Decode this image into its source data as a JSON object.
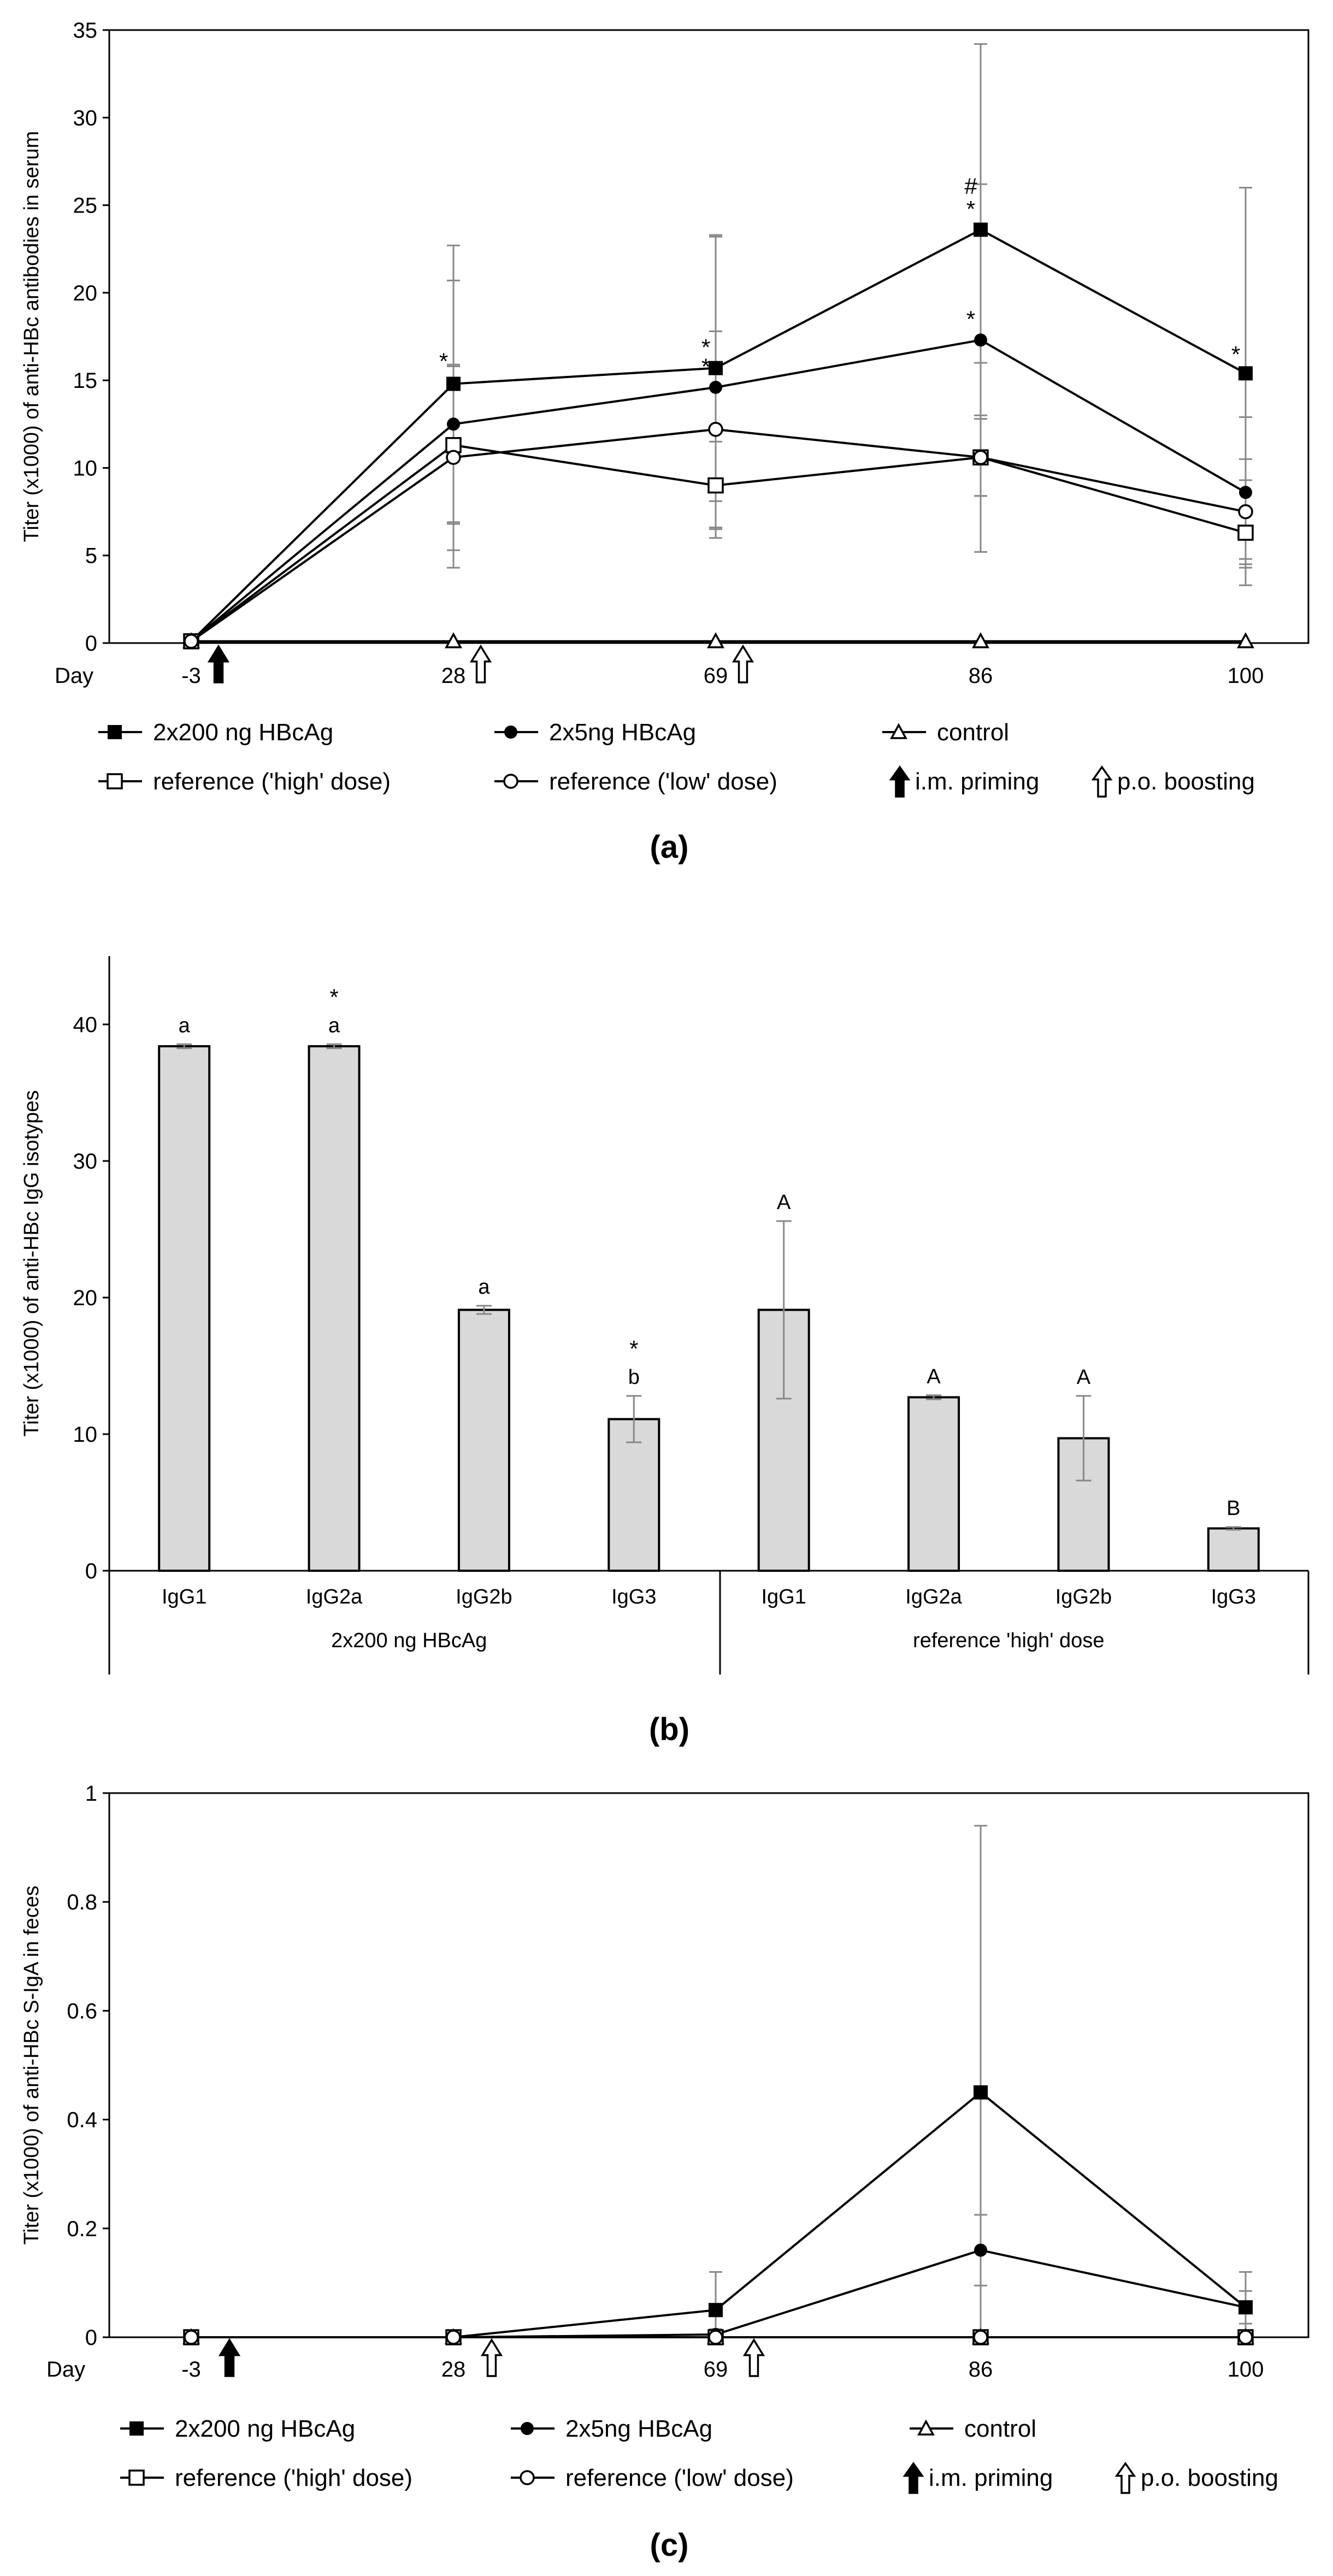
{
  "colors": {
    "bar_fill": "#d9d9d9",
    "axis": "#000000",
    "error_bar": "#888888",
    "background": "#ffffff"
  },
  "chart_data": [
    {
      "id": "a",
      "type": "line",
      "caption": "(a)",
      "ylabel": "Titer (x1000) of anti-HBc antibodies in serum",
      "xlabel_prefix": "Day",
      "categories": [
        "-3",
        "28",
        "69",
        "86",
        "100"
      ],
      "ylim": [
        0,
        35
      ],
      "yticks": [
        0,
        5,
        10,
        15,
        20,
        25,
        30,
        35
      ],
      "series": [
        {
          "name": "2x200 ng HBcAg",
          "marker": "filled-square",
          "values": [
            0.1,
            14.8,
            15.7,
            23.6,
            15.4
          ],
          "errors": [
            0,
            7.9,
            7.6,
            10.6,
            10.6
          ]
        },
        {
          "name": "2x5ng HBcAg",
          "marker": "filled-circle",
          "values": [
            0.1,
            12.5,
            14.6,
            17.3,
            8.6
          ],
          "errors": [
            0,
            8.2,
            8.6,
            8.9,
            4.3
          ]
        },
        {
          "name": "control",
          "marker": "open-triangle",
          "values": [
            0.1,
            0.1,
            0.1,
            0.1,
            0.1
          ],
          "errors": [
            0,
            0,
            0,
            0,
            0
          ]
        },
        {
          "name": "reference ('high' dose)",
          "marker": "open-square",
          "values": [
            0.1,
            11.3,
            9.0,
            10.6,
            6.3
          ],
          "errors": [
            0,
            4.5,
            2.5,
            2.2,
            3.0
          ]
        },
        {
          "name": "reference ('low' dose)",
          "marker": "open-circle",
          "values": [
            0.1,
            10.6,
            12.2,
            10.6,
            7.5
          ],
          "errors": [
            0,
            5.3,
            5.6,
            5.4,
            3.0
          ]
        }
      ],
      "annotations": [
        {
          "category": "28",
          "value": 16.2,
          "text": "*"
        },
        {
          "category": "69",
          "value": 17.0,
          "text": "*"
        },
        {
          "category": "69",
          "value": 15.9,
          "text": "*"
        },
        {
          "category": "86",
          "value": 24.9,
          "text": "*"
        },
        {
          "category": "86",
          "value": 26.2,
          "text": "#"
        },
        {
          "category": "86",
          "value": 18.6,
          "text": "*"
        },
        {
          "category": "100",
          "value": 16.6,
          "text": "*"
        }
      ],
      "event_arrows": [
        {
          "after_category": "-3",
          "kind": "i.m. priming"
        },
        {
          "after_category": "28",
          "kind": "p.o. boosting"
        },
        {
          "after_category": "69",
          "kind": "p.o. boosting"
        }
      ],
      "legend": [
        {
          "label": "2x200 ng HBcAg",
          "marker": "filled-square"
        },
        {
          "label": "2x5ng HBcAg",
          "marker": "filled-circle"
        },
        {
          "label": "control",
          "marker": "open-triangle"
        },
        {
          "label": "reference ('high' dose)",
          "marker": "open-square"
        },
        {
          "label": "reference ('low' dose)",
          "marker": "open-circle"
        },
        {
          "label": "i.m. priming",
          "marker": "filled-arrow"
        },
        {
          "label": "p.o. boosting",
          "marker": "open-arrow"
        }
      ]
    },
    {
      "id": "b",
      "type": "bar",
      "caption": "(b)",
      "ylabel": "Titer (x1000) of anti-HBc IgG isotypes",
      "ylim": [
        0,
        45
      ],
      "yticks": [
        0,
        10,
        20,
        30,
        40
      ],
      "categories": [
        "IgG1",
        "IgG2a",
        "IgG2b",
        "IgG3",
        "IgG1",
        "IgG2a",
        "IgG2b",
        "IgG3"
      ],
      "groups": [
        {
          "label": "2x200 ng HBcAg",
          "range": [
            0,
            3
          ]
        },
        {
          "label": "reference 'high' dose",
          "range": [
            4,
            7
          ]
        }
      ],
      "values": [
        38.4,
        38.4,
        19.1,
        11.1,
        19.1,
        12.7,
        9.7,
        3.1
      ],
      "errors": [
        0.15,
        0.15,
        0.3,
        1.7,
        6.5,
        0.15,
        3.1,
        0.1
      ],
      "labels": [
        "a",
        "a",
        "a",
        "b",
        "A",
        "A",
        "A",
        "B"
      ],
      "stars": [
        "",
        "*",
        "",
        "*",
        "",
        "",
        "",
        ""
      ]
    },
    {
      "id": "c",
      "type": "line",
      "caption": "(c)",
      "ylabel": "Titer (x1000) of anti-HBc S-IgA in feces",
      "xlabel_prefix": "Day",
      "categories": [
        "-3",
        "28",
        "69",
        "86",
        "100"
      ],
      "ylim": [
        0,
        1
      ],
      "yticks": [
        0,
        0.2,
        0.4,
        0.6,
        0.8,
        1
      ],
      "ytick_labels": [
        "0",
        "0.2",
        "0.4",
        "0.6",
        "0.8",
        "1"
      ],
      "series": [
        {
          "name": "2x200 ng HBcAg",
          "marker": "filled-square",
          "values": [
            0.0,
            0.0,
            0.05,
            0.45,
            0.055
          ],
          "errors": [
            0,
            0,
            0.07,
            0.49,
            0.065
          ]
        },
        {
          "name": "2x5ng HBcAg",
          "marker": "filled-circle",
          "values": [
            0.0,
            0.0,
            0.005,
            0.16,
            0.055
          ],
          "errors": [
            0,
            0,
            0.01,
            0.065,
            0.03
          ]
        },
        {
          "name": "control",
          "marker": "open-triangle",
          "values": [
            0.0,
            0.0,
            0.0,
            0.0,
            0.0
          ],
          "errors": [
            0,
            0,
            0,
            0,
            0
          ]
        },
        {
          "name": "reference ('high' dose)",
          "marker": "open-square",
          "values": [
            0.0,
            0.0,
            0.0,
            0.0,
            0.0
          ],
          "errors": [
            0,
            0,
            0,
            0,
            0
          ]
        },
        {
          "name": "reference ('low' dose)",
          "marker": "open-circle",
          "values": [
            0.0,
            0.0,
            0.0,
            0.0,
            0.0
          ],
          "errors": [
            0,
            0,
            0,
            0,
            0
          ]
        }
      ],
      "annotations": [],
      "event_arrows": [
        {
          "after_category": "-3",
          "kind": "i.m. priming"
        },
        {
          "after_category": "28",
          "kind": "p.o. boosting"
        },
        {
          "after_category": "69",
          "kind": "p.o. boosting"
        }
      ],
      "legend": [
        {
          "label": "2x200 ng HBcAg",
          "marker": "filled-square"
        },
        {
          "label": "2x5ng HBcAg",
          "marker": "filled-circle"
        },
        {
          "label": "control",
          "marker": "open-triangle"
        },
        {
          "label": "reference ('high' dose)",
          "marker": "open-square"
        },
        {
          "label": "reference ('low' dose)",
          "marker": "open-circle"
        },
        {
          "label": "i.m. priming",
          "marker": "filled-arrow"
        },
        {
          "label": "p.o. boosting",
          "marker": "open-arrow"
        }
      ]
    }
  ]
}
